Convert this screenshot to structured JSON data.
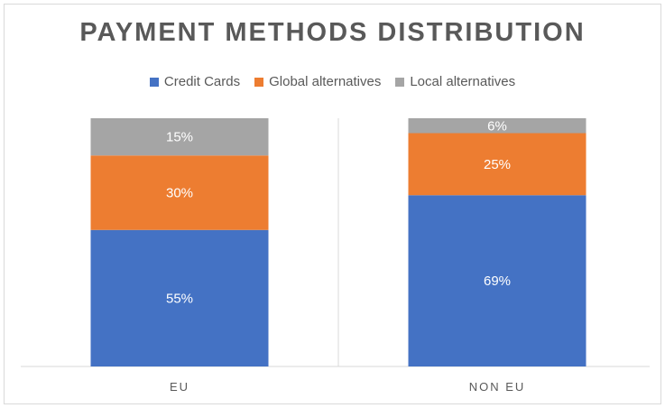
{
  "chart_data": {
    "type": "bar",
    "stacked": true,
    "title": "PAYMENT METHODS DISTRIBUTION",
    "categories": [
      "EU",
      "NON EU"
    ],
    "series": [
      {
        "name": "Credit Cards",
        "values": [
          55,
          69
        ],
        "color": "#4472c4"
      },
      {
        "name": "Global alternatives",
        "values": [
          30,
          25
        ],
        "color": "#ed7d31"
      },
      {
        "name": "Local alternatives",
        "values": [
          15,
          6
        ],
        "color": "#a5a5a5"
      }
    ],
    "value_suffix": "%",
    "ylim": [
      0,
      100
    ],
    "legend": "top",
    "grid": false
  }
}
